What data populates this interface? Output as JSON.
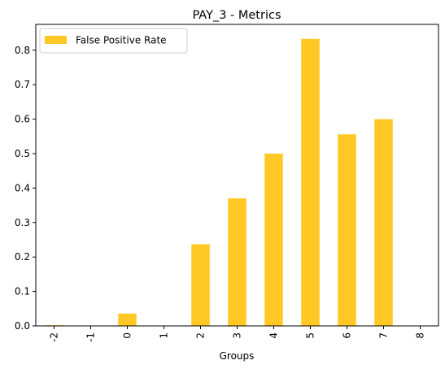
{
  "chart_data": {
    "type": "bar",
    "title": "PAY_3 - Metrics",
    "xlabel": "Groups",
    "ylabel": "",
    "categories": [
      "-2",
      "-1",
      "0",
      "1",
      "2",
      "3",
      "4",
      "5",
      "6",
      "7",
      "8"
    ],
    "series": [
      {
        "name": "False Positive Rate",
        "color": "#ffc825",
        "values": [
          0.002,
          0.0,
          0.036,
          0.0,
          0.237,
          0.37,
          0.5,
          0.833,
          0.556,
          0.6,
          0.0
        ]
      }
    ],
    "ylim": [
      0,
      0.875
    ],
    "yticks": [
      0.0,
      0.1,
      0.2,
      0.3,
      0.4,
      0.5,
      0.6,
      0.7,
      0.8
    ],
    "ytick_labels": [
      "0.0",
      "0.1",
      "0.2",
      "0.3",
      "0.4",
      "0.5",
      "0.6",
      "0.7",
      "0.8"
    ],
    "grid": false,
    "legend_position": "top-left",
    "xtick_rotation": "vertical"
  }
}
